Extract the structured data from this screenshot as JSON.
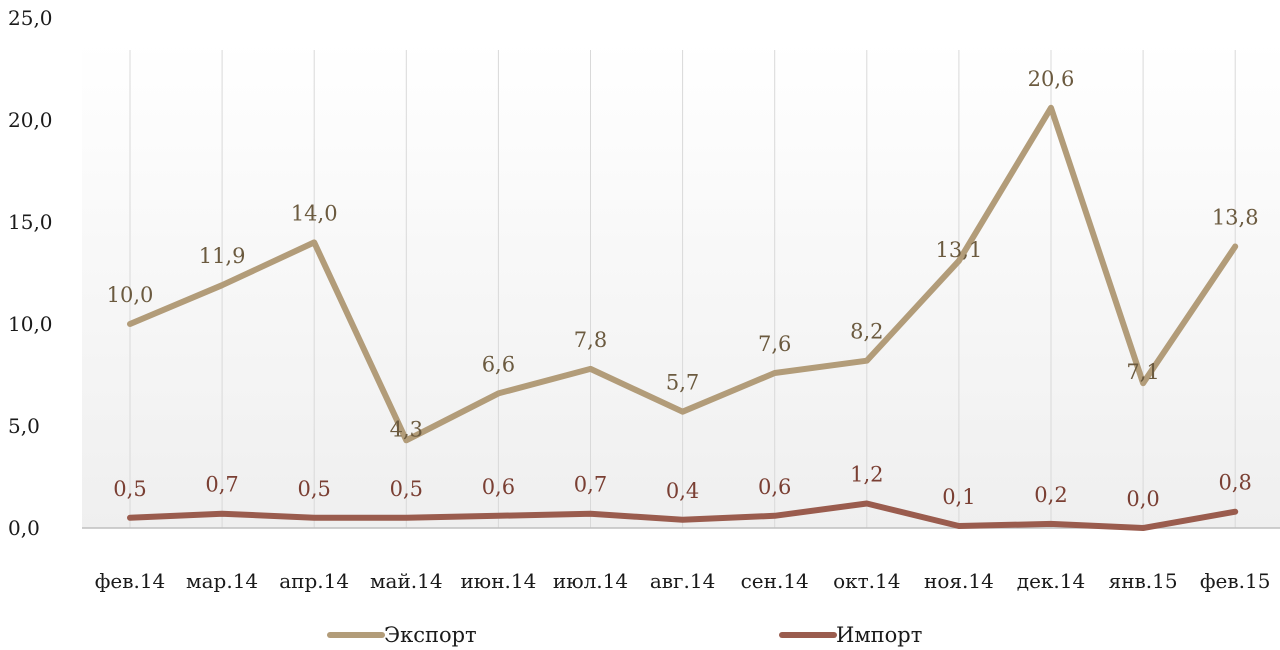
{
  "chart_data": {
    "type": "line",
    "categories": [
      "фев.14",
      "мар.14",
      "апр.14",
      "май.14",
      "июн.14",
      "июл.14",
      "авг.14",
      "сен.14",
      "окт.14",
      "ноя.14",
      "дек.14",
      "янв.15",
      "фев.15"
    ],
    "y_ticks": [
      "0,0",
      "5,0",
      "10,0",
      "15,0",
      "20,0",
      "25,0"
    ],
    "ylim": [
      0,
      25
    ],
    "grid": "vertical",
    "legend_position": "bottom",
    "series": [
      {
        "name": "Экспорт",
        "color": "#b29c79",
        "label_color": "#6b5a3f",
        "values": [
          10.0,
          11.9,
          14.0,
          4.3,
          6.6,
          7.8,
          5.7,
          7.6,
          8.2,
          13.1,
          20.6,
          7.1,
          13.8
        ],
        "labels": [
          "10,0",
          "11,9",
          "14,0",
          "4,3",
          "6,6",
          "7,8",
          "5,7",
          "7,6",
          "8,2",
          "13,1",
          "20,6",
          "7,1",
          "13,8"
        ]
      },
      {
        "name": "Импорт",
        "color": "#9a5c4e",
        "label_color": "#7a3f33",
        "values": [
          0.5,
          0.7,
          0.5,
          0.5,
          0.6,
          0.7,
          0.4,
          0.6,
          1.2,
          0.1,
          0.2,
          0.0,
          0.8
        ],
        "labels": [
          "0,5",
          "0,7",
          "0,5",
          "0,5",
          "0,6",
          "0,7",
          "0,4",
          "0,6",
          "1,2",
          "0,1",
          "0,2",
          "0,0",
          "0,8"
        ]
      }
    ]
  }
}
